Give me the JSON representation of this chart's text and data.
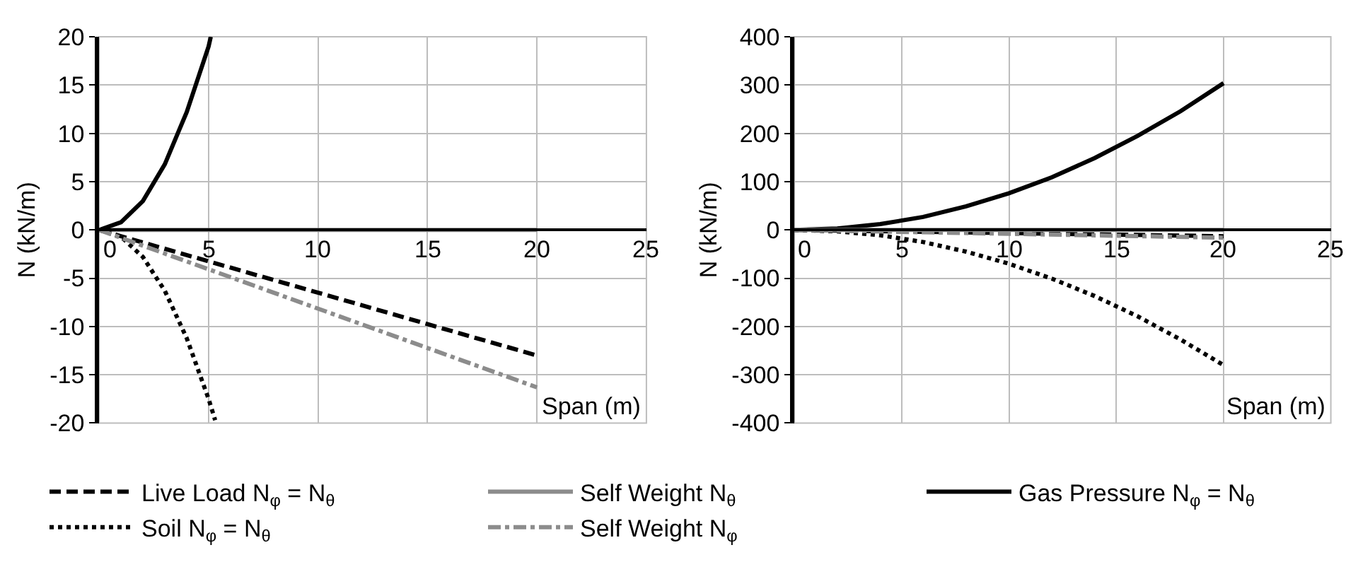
{
  "chart_data": [
    {
      "type": "line",
      "xlabel": "Span (m)",
      "ylabel": "N (kN/m)",
      "xlim": [
        0,
        25
      ],
      "xticks": [
        0,
        5,
        10,
        15,
        20,
        25
      ],
      "ylim": [
        -20,
        20
      ],
      "yticks": [
        -20,
        -15,
        -10,
        -5,
        0,
        5,
        10,
        15,
        20
      ],
      "grid": true,
      "legend": "bottom",
      "marker": "none",
      "series": [
        {
          "name": "Live Load N$_{φ}$ = N$_{θ}$",
          "color": "#000000",
          "line_style": "dashed",
          "x": [
            0,
            20
          ],
          "values": [
            0,
            -13
          ]
        },
        {
          "name": "Self Weight N$_{θ}$",
          "color": "#8c8c8c",
          "line_style": "solid",
          "x": [
            0,
            20
          ],
          "values": [
            0,
            0
          ]
        },
        {
          "name": "Gas Pressure N$_{φ}$ = N$_{θ}$",
          "color": "#000000",
          "line_style": "solid",
          "x": [
            0,
            1,
            2,
            3,
            4,
            5,
            5.1
          ],
          "values": [
            0,
            0.8,
            3,
            6.8,
            12.2,
            19,
            20
          ]
        },
        {
          "name": "Soil N$_{φ}$ = N$_{θ}$",
          "color": "#000000",
          "line_style": "dotted",
          "x": [
            0,
            1,
            2,
            3,
            4,
            5,
            5.3
          ],
          "values": [
            0,
            -0.7,
            -2.8,
            -6.3,
            -11.2,
            -17.5,
            -19.7
          ]
        },
        {
          "name": "Self Weight N$_{φ}$",
          "color": "#8c8c8c",
          "line_style": "dashdot",
          "x": [
            0,
            20
          ],
          "values": [
            0,
            -16.3
          ]
        }
      ]
    },
    {
      "type": "line",
      "xlabel": "Span (m)",
      "ylabel": "N (kN/m)",
      "xlim": [
        0,
        25
      ],
      "xticks": [
        0,
        5,
        10,
        15,
        20,
        25
      ],
      "ylim": [
        -400,
        400
      ],
      "yticks": [
        -400,
        -300,
        -200,
        -100,
        0,
        100,
        200,
        300,
        400
      ],
      "grid": true,
      "marker": "none",
      "series": [
        {
          "color": "#000000",
          "line_style": "dashed",
          "x": [
            0,
            20
          ],
          "values": [
            0,
            -13
          ]
        },
        {
          "color": "#000000",
          "line_style": "solid",
          "x": [
            0,
            2,
            4,
            6,
            8,
            10,
            12,
            14,
            16,
            18,
            20
          ],
          "values": [
            0,
            3,
            12,
            27,
            49,
            76,
            109,
            149,
            195,
            246,
            304
          ]
        },
        {
          "color": "#000000",
          "line_style": "dotted",
          "x": [
            0,
            2,
            4,
            6,
            8,
            10,
            12,
            14,
            16,
            18,
            20
          ],
          "values": [
            0,
            -3,
            -11,
            -25,
            -45,
            -70,
            -101,
            -137,
            -179,
            -227,
            -280
          ]
        },
        {
          "color": "#8c8c8c",
          "line_style": "dashdot",
          "x": [
            0,
            20
          ],
          "values": [
            0,
            -16
          ]
        },
        {
          "color": "#8c8c8c",
          "line_style": "solid",
          "x": [
            0,
            20
          ],
          "values": [
            0,
            0
          ]
        }
      ]
    }
  ]
}
